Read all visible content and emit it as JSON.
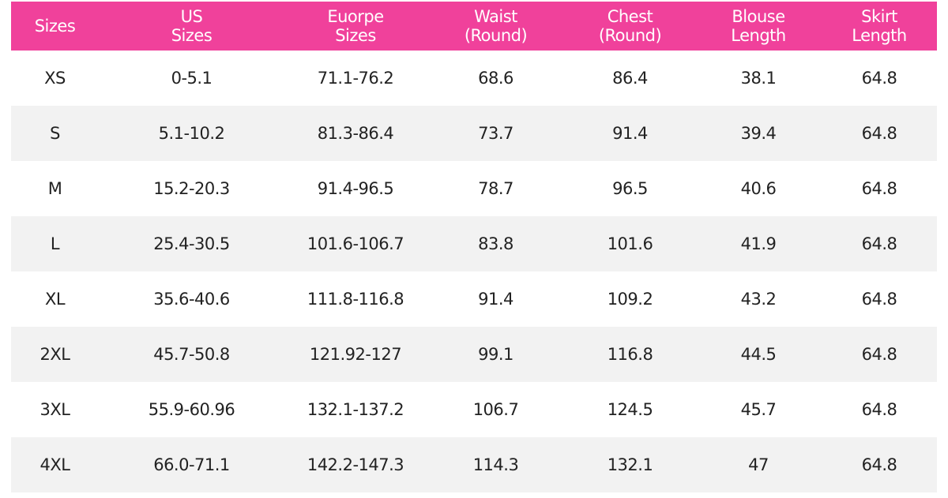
{
  "table": {
    "headers": [
      "Sizes",
      "US\nSizes",
      "Euorpe\nSizes",
      "Waist\n(Round)",
      "Chest\n(Round)",
      "Blouse\nLength",
      "Skirt\nLength"
    ],
    "rows": [
      [
        "XS",
        "0-5.1",
        "71.1-76.2",
        "68.6",
        "86.4",
        "38.1",
        "64.8"
      ],
      [
        "S",
        "5.1-10.2",
        "81.3-86.4",
        "73.7",
        "91.4",
        "39.4",
        "64.8"
      ],
      [
        "M",
        "15.2-20.3",
        "91.4-96.5",
        "78.7",
        "96.5",
        "40.6",
        "64.8"
      ],
      [
        "L",
        "25.4-30.5",
        "101.6-106.7",
        "83.8",
        "101.6",
        "41.9",
        "64.8"
      ],
      [
        "XL",
        "35.6-40.6",
        "111.8-116.8",
        "91.4",
        "109.2",
        "43.2",
        "64.8"
      ],
      [
        "2XL",
        "45.7-50.8",
        "121.92-127",
        "99.1",
        "116.8",
        "44.5",
        "64.8"
      ],
      [
        "3XL",
        "55.9-60.96",
        "132.1-137.2",
        "106.7",
        "124.5",
        "45.7",
        "64.8"
      ],
      [
        "4XL",
        "66.0-71.1",
        "142.2-147.3",
        "114.3",
        "132.1",
        "47",
        "64.8"
      ]
    ]
  }
}
